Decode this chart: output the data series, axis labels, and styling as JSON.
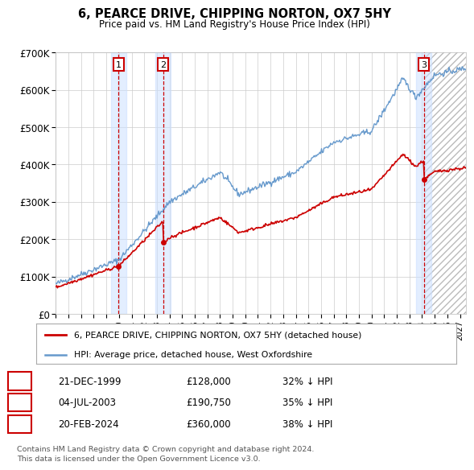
{
  "title": "6, PEARCE DRIVE, CHIPPING NORTON, OX7 5HY",
  "subtitle": "Price paid vs. HM Land Registry's House Price Index (HPI)",
  "background_color": "#ffffff",
  "plot_bg_color": "#ffffff",
  "grid_color": "#cccccc",
  "hpi_color": "#6699cc",
  "price_color": "#cc0000",
  "transactions": [
    {
      "date": 1999.97,
      "price": 128000,
      "label": "1"
    },
    {
      "date": 2003.5,
      "price": 190750,
      "label": "2"
    },
    {
      "date": 2024.13,
      "price": 360000,
      "label": "3"
    }
  ],
  "sale_dates_str": [
    "21-DEC-1999",
    "04-JUL-2003",
    "20-FEB-2024"
  ],
  "sale_prices_str": [
    "£128,000",
    "£190,750",
    "£360,000"
  ],
  "sale_hpi_str": [
    "32% ↓ HPI",
    "35% ↓ HPI",
    "38% ↓ HPI"
  ],
  "xmin": 1995.0,
  "xmax": 2027.5,
  "ymin": 0,
  "ymax": 700000,
  "yticks": [
    0,
    100000,
    200000,
    300000,
    400000,
    500000,
    600000,
    700000
  ],
  "ytick_labels": [
    "£0",
    "£100K",
    "£200K",
    "£300K",
    "£400K",
    "£500K",
    "£600K",
    "£700K"
  ],
  "xticks": [
    1995,
    1996,
    1997,
    1998,
    1999,
    2000,
    2001,
    2002,
    2003,
    2004,
    2005,
    2006,
    2007,
    2008,
    2009,
    2010,
    2011,
    2012,
    2013,
    2014,
    2015,
    2016,
    2017,
    2018,
    2019,
    2020,
    2021,
    2022,
    2023,
    2024,
    2025,
    2026,
    2027
  ],
  "footer1": "Contains HM Land Registry data © Crown copyright and database right 2024.",
  "footer2": "This data is licensed under the Open Government Licence v3.0.",
  "legend_line1": "6, PEARCE DRIVE, CHIPPING NORTON, OX7 5HY (detached house)",
  "legend_line2": "HPI: Average price, detached house, West Oxfordshire",
  "projection_start": 2024.13
}
